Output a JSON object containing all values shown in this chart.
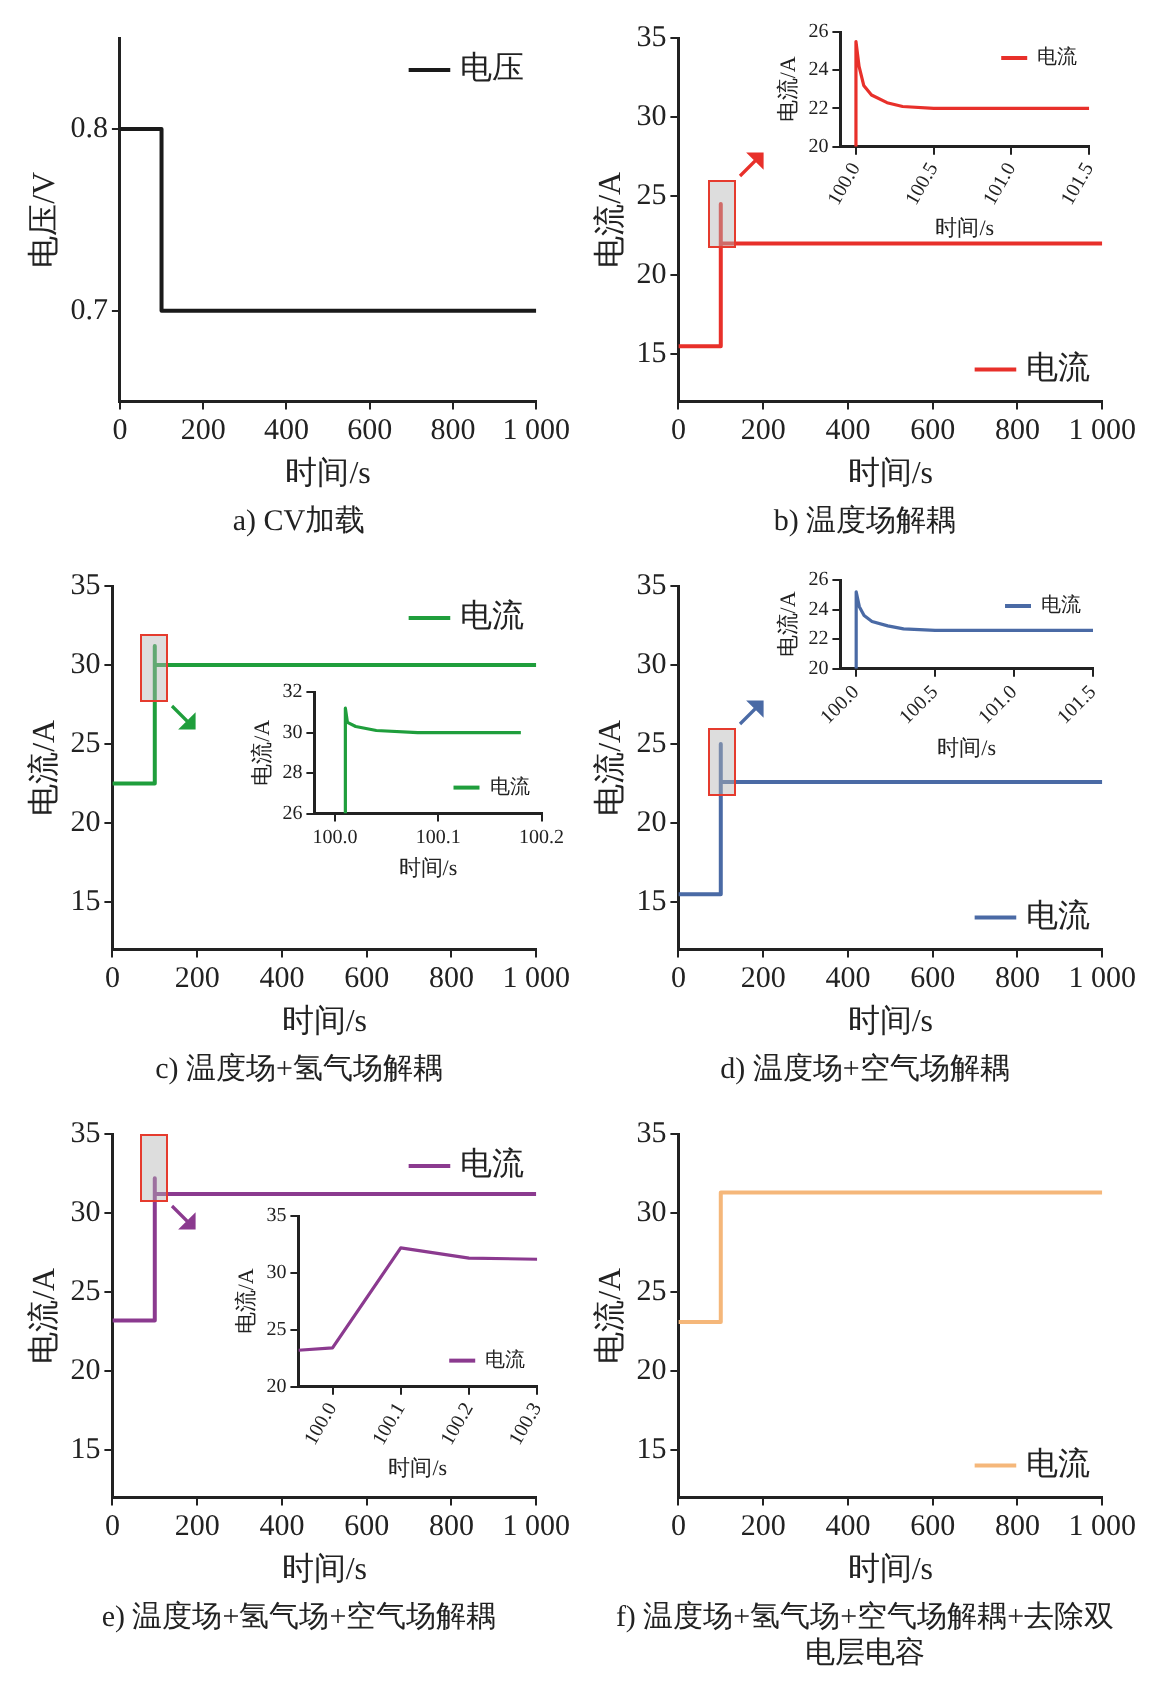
{
  "chart_data": [
    {
      "type": "line",
      "title": "a) CV加载",
      "xlabel": "时间/s",
      "ylabel": "电压/V",
      "x": [
        0,
        100,
        100,
        1000
      ],
      "xlim": [
        0,
        1000
      ],
      "xticks": [
        0,
        200,
        400,
        600,
        800,
        {
          "value": 1000,
          "label": "1 000"
        }
      ],
      "ylim": [
        0.65,
        0.85
      ],
      "yticks": [
        0.7,
        0.8
      ],
      "legend": "top right",
      "series": [
        {
          "name": "电压",
          "color": "#1a1a1a",
          "values": [
            0.8,
            0.8,
            0.7,
            0.7
          ]
        }
      ]
    },
    {
      "type": "line",
      "title": "b) 温度场解耦",
      "xlabel": "时间/s",
      "ylabel": "电流/A",
      "x": [
        0,
        100,
        100,
        100,
        1000
      ],
      "xlim": [
        0,
        1000
      ],
      "xticks": [
        0,
        200,
        400,
        600,
        800,
        {
          "value": 1000,
          "label": "1 000"
        }
      ],
      "ylim": [
        12,
        35
      ],
      "yticks": [
        15,
        20,
        25,
        30,
        35
      ],
      "legend": "bottom right",
      "series": [
        {
          "name": "电流",
          "color": "#e8302a",
          "values": [
            15.5,
            15.5,
            24.5,
            22,
            22
          ]
        }
      ]
    },
    {
      "type": "line",
      "xlabel": "时间/s",
      "ylabel": "电流/A",
      "x": [
        100,
        100,
        100.02,
        100.05,
        100.1,
        100.2,
        100.3,
        100.5,
        101,
        101.5
      ],
      "xlim": [
        99.9,
        101.5
      ],
      "xticks": [
        {
          "value": 100,
          "label": "100.0"
        },
        100.5,
        {
          "value": 101,
          "label": "101.0"
        },
        101.5
      ],
      "ylim": [
        20,
        26
      ],
      "yticks": [
        20,
        22,
        24,
        26
      ],
      "legend": "top right",
      "series": [
        {
          "name": "电流",
          "color": "#e8302a",
          "values": [
            20,
            25.5,
            24.2,
            23.2,
            22.7,
            22.3,
            22.1,
            22,
            22,
            22
          ]
        }
      ]
    },
    {
      "type": "line",
      "title": "c) 温度场+氢气场解耦",
      "xlabel": "时间/s",
      "ylabel": "电流/A",
      "x": [
        0,
        100,
        100,
        100,
        1000
      ],
      "xlim": [
        0,
        1000
      ],
      "xticks": [
        0,
        200,
        400,
        600,
        800,
        {
          "value": 1000,
          "label": "1 000"
        }
      ],
      "ylim": [
        12,
        35
      ],
      "yticks": [
        15,
        20,
        25,
        30,
        35
      ],
      "legend": "top right",
      "series": [
        {
          "name": "电流",
          "color": "#1f9e3c",
          "values": [
            22.5,
            22.5,
            31.2,
            30,
            30
          ]
        }
      ]
    },
    {
      "type": "line",
      "xlabel": "时间/s",
      "ylabel": "电流/A",
      "x": [
        100.01,
        100.01,
        100.012,
        100.02,
        100.04,
        100.08,
        100.18
      ],
      "xlim": [
        99.98,
        100.2
      ],
      "xticks": [
        {
          "value": 100,
          "label": "100.0"
        },
        100.1,
        100.2
      ],
      "ylim": [
        26,
        32
      ],
      "yticks": [
        26,
        28,
        30,
        32
      ],
      "legend": "bottom right",
      "series": [
        {
          "name": "电流",
          "color": "#1f9e3c",
          "values": [
            26,
            31.2,
            30.5,
            30.3,
            30.1,
            30,
            30
          ]
        }
      ]
    },
    {
      "type": "line",
      "title": "d) 温度场+空气场解耦",
      "xlabel": "时间/s",
      "ylabel": "电流/A",
      "x": [
        0,
        100,
        100,
        100,
        1000
      ],
      "xlim": [
        0,
        1000
      ],
      "xticks": [
        0,
        200,
        400,
        600,
        800,
        {
          "value": 1000,
          "label": "1 000"
        }
      ],
      "ylim": [
        12,
        35
      ],
      "yticks": [
        15,
        20,
        25,
        30,
        35
      ],
      "legend": "bottom right",
      "series": [
        {
          "name": "电流",
          "color": "#4a6aa5",
          "values": [
            15.5,
            15.5,
            25,
            22.6,
            22.6
          ]
        }
      ]
    },
    {
      "type": "line",
      "xlabel": "时间/s",
      "ylabel": "电流/A",
      "x": [
        100,
        100,
        100.02,
        100.05,
        100.1,
        100.2,
        100.3,
        100.5,
        101,
        101.5
      ],
      "xlim": [
        99.9,
        101.5
      ],
      "xticks": [
        {
          "value": 100,
          "label": "100.0"
        },
        100.5,
        {
          "value": 101,
          "label": "101.0"
        },
        101.5
      ],
      "ylim": [
        20,
        26
      ],
      "yticks": [
        20,
        22,
        24,
        26
      ],
      "legend": "top right",
      "series": [
        {
          "name": "电流",
          "color": "#4a6aa5",
          "values": [
            20,
            25.2,
            24.2,
            23.6,
            23.2,
            22.9,
            22.7,
            22.6,
            22.6,
            22.6
          ]
        }
      ]
    },
    {
      "type": "line",
      "title": "e) 温度场+氢气场+空气场解耦",
      "xlabel": "时间/s",
      "ylabel": "电流/A",
      "x": [
        0,
        100,
        100,
        100,
        1000
      ],
      "xlim": [
        0,
        1000
      ],
      "xticks": [
        0,
        200,
        400,
        600,
        800,
        {
          "value": 1000,
          "label": "1 000"
        }
      ],
      "ylim": [
        12,
        35
      ],
      "yticks": [
        15,
        20,
        25,
        30,
        35
      ],
      "legend": "top right",
      "series": [
        {
          "name": "电流",
          "color": "#8b3a8f",
          "values": [
            23.2,
            23.2,
            32.2,
            31.2,
            31.2
          ]
        }
      ]
    },
    {
      "type": "line",
      "xlabel": "时间/s",
      "ylabel": "电流/A",
      "x": [
        99.95,
        100,
        100.1,
        100.2,
        100.3
      ],
      "xlim": [
        99.95,
        100.3
      ],
      "xticks": [
        {
          "value": 100,
          "label": "100.0"
        },
        100.1,
        100.2,
        100.3
      ],
      "ylim": [
        20,
        35
      ],
      "yticks": [
        20,
        25,
        30,
        35
      ],
      "legend": "bottom right",
      "series": [
        {
          "name": "电流",
          "color": "#8b3a8f",
          "values": [
            23.2,
            23.4,
            32.2,
            31.3,
            31.2
          ]
        }
      ]
    },
    {
      "type": "line",
      "title": "f) 温度场+氢气场+空气场解耦+去除双电层电容",
      "xlabel": "时间/s",
      "ylabel": "电流/A",
      "x": [
        0,
        100,
        100,
        1000
      ],
      "xlim": [
        0,
        1000
      ],
      "xticks": [
        0,
        200,
        400,
        600,
        800,
        {
          "value": 1000,
          "label": "1 000"
        }
      ],
      "ylim": [
        12,
        35
      ],
      "yticks": [
        15,
        20,
        25,
        30,
        35
      ],
      "legend": "bottom right",
      "series": [
        {
          "name": "电流",
          "color": "#f5b77a",
          "values": [
            23.1,
            23.1,
            31.3,
            31.3
          ]
        }
      ]
    }
  ]
}
